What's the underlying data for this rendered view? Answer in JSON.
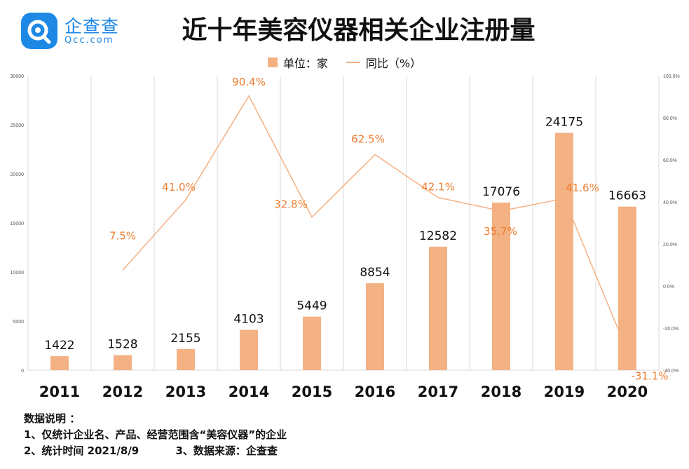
{
  "logo": {
    "name": "企查查",
    "url": "Qcc.com",
    "icon": "qcc-logo-icon"
  },
  "title": "近十年美容仪器相关企业注册量",
  "legend": {
    "bar_label": "单位：家",
    "line_label": "同比（%）"
  },
  "colors": {
    "bar": "#f4b183",
    "line": "#f4b183",
    "line_label": "#ed7d31",
    "grid": "#d9d9d9",
    "axis_text": "#595959",
    "brand": "#1e88e5"
  },
  "chart_data": {
    "type": "bar",
    "title": "近十年美容仪器相关企业注册量",
    "categories": [
      "2011",
      "2012",
      "2013",
      "2014",
      "2015",
      "2016",
      "2017",
      "2018",
      "2019",
      "2020"
    ],
    "series": [
      {
        "name": "单位：家",
        "type": "bar",
        "axis": "left",
        "values": [
          1422,
          1528,
          2155,
          4103,
          5449,
          8854,
          12582,
          17076,
          24175,
          16663
        ]
      },
      {
        "name": "同比（%）",
        "type": "line",
        "axis": "right",
        "values": [
          null,
          7.5,
          41.0,
          90.4,
          32.8,
          62.5,
          42.1,
          35.7,
          41.6,
          -31.1
        ],
        "labels": [
          "",
          "7.5%",
          "41.0%",
          "90.4%",
          "32.8%",
          "62.5%",
          "42.1%",
          "35.7%",
          "41.6%",
          "-31.1%"
        ]
      }
    ],
    "ylim_left": [
      0,
      30000
    ],
    "yticks_left": [
      "0",
      "5000",
      "10000",
      "15000",
      "20000",
      "25000",
      "30000"
    ],
    "ylim_right": [
      -40,
      100
    ],
    "yticks_right": [
      "-40.0%",
      "-20.0%",
      "0.0%",
      "20.0%",
      "40.0%",
      "60.0%",
      "80.0%",
      "100.0%"
    ],
    "grid": "vertical",
    "legend_position": "top-center"
  },
  "notes": {
    "heading": "数据说明 ：",
    "line1": "1、仅统计企业名、产品、经营范围含“美容仪器”的企业",
    "line2": "2、统计时间 2021/8/9          3、数据来源：企查查"
  }
}
